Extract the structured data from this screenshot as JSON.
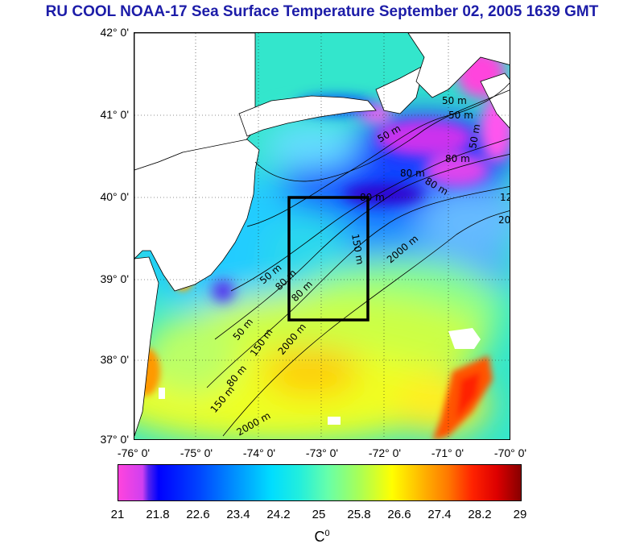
{
  "title": "RU COOL  NOAA-17 Sea Surface Temperature September 02, 2005 1639 GMT",
  "lat_labels": [
    "42° 0'",
    "41° 0'",
    "40° 0'",
    "39° 0'",
    "38° 0'",
    "37° 0'"
  ],
  "lon_labels": [
    "-76° 0'",
    "-75° 0'",
    "-74° 0'",
    "-73° 0'",
    "-72° 0'",
    "-71° 0'",
    "-70° 0'"
  ],
  "contour_labels": [
    "50 m",
    "50 m",
    "50 m",
    "50 m",
    "50 m",
    "80 m",
    "80 m",
    "80 m",
    "80 m",
    "80 m",
    "80 m",
    "150 m",
    "150 m",
    "150 m",
    "2000 m",
    "2000 m",
    "2000 m",
    "50 m",
    "80 m",
    "120",
    "20"
  ],
  "colorbar": {
    "ticks": [
      "21",
      "21.8",
      "22.6",
      "23.4",
      "24.2",
      "25",
      "25.8",
      "26.6",
      "27.4",
      "28.2",
      "29"
    ],
    "unit_base": "C",
    "unit_sup": "0"
  },
  "colors": {
    "title": "#1c1ca8",
    "land": "#ffffff",
    "box": "#000000"
  },
  "map": {
    "extent": {
      "lon": [
        -76,
        -70
      ],
      "lat": [
        37,
        42
      ]
    },
    "study_box": {
      "lon": [
        -73.5,
        -72.5
      ],
      "lat": [
        38.5,
        40
      ]
    }
  }
}
